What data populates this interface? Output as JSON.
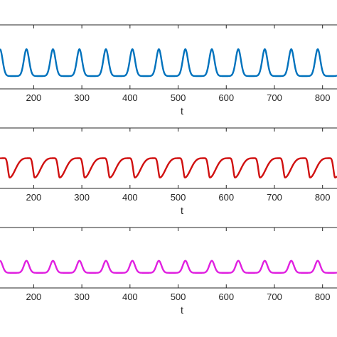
{
  "chart_data": [
    {
      "type": "line",
      "xlabel": "t",
      "ylabel": "",
      "xlim": [
        130,
        830
      ],
      "ylim": [
        0,
        1
      ],
      "xticks": [
        200,
        300,
        400,
        500,
        600,
        700,
        800
      ],
      "grid": false,
      "series": [
        {
          "color": "#0072BD",
          "period": 55,
          "phase": 185,
          "baseline": 0.2,
          "peak": 0.62,
          "shape": "sharp"
        }
      ]
    },
    {
      "type": "line",
      "xlabel": "t",
      "ylabel": "",
      "xlim": [
        130,
        830
      ],
      "ylim": [
        0,
        1
      ],
      "xticks": [
        200,
        300,
        400,
        500,
        600,
        700,
        800
      ],
      "grid": false,
      "series": [
        {
          "color": "#D01010",
          "period": 52,
          "phase": 150,
          "baseline": 0.18,
          "peak": 0.5,
          "shape": "sawtooth"
        }
      ]
    },
    {
      "type": "line",
      "xlabel": "t",
      "ylabel": "",
      "xlim": [
        130,
        830
      ],
      "ylim": [
        0,
        1
      ],
      "xticks": [
        200,
        300,
        400,
        500,
        600,
        700,
        800
      ],
      "grid": false,
      "series": [
        {
          "color": "#E020E0",
          "period": 55,
          "phase": 185,
          "baseline": 0.25,
          "peak": 0.45,
          "shape": "sharp"
        }
      ]
    }
  ]
}
